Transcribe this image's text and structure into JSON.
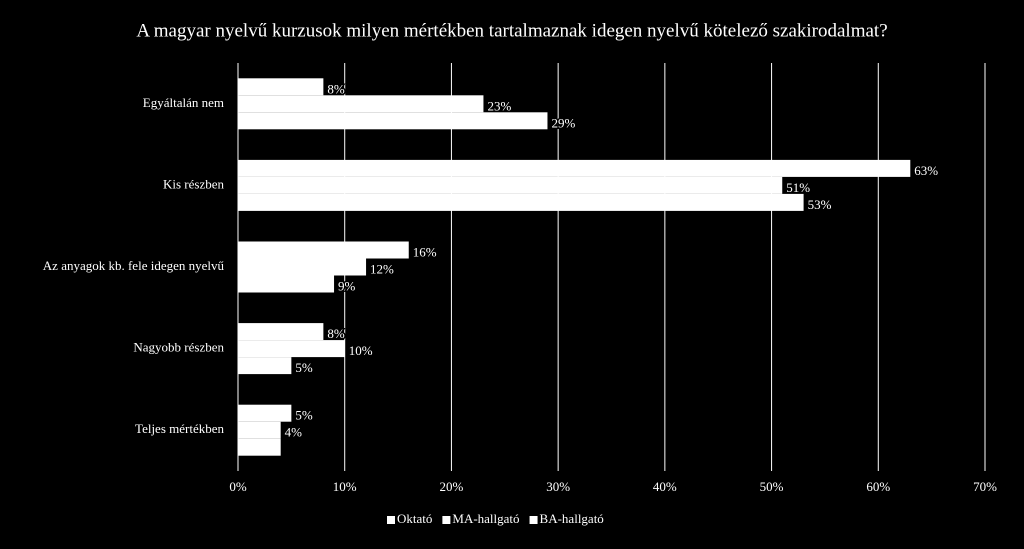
{
  "chart_data": {
    "type": "bar",
    "orientation": "horizontal",
    "title": "A magyar nyelvű kurzusok milyen mértékben tartalmaznak idegen nyelvű kötelező szakirodalmat?",
    "categories": [
      "Egyáltalán nem",
      "Kis részben",
      "Az anyagok kb. fele idegen nyelvű",
      "Nagyobb részben",
      "Teljes mértékben"
    ],
    "series": [
      {
        "name": "Oktató",
        "color": "#ffffff",
        "values": [
          8,
          63,
          16,
          8,
          5
        ],
        "value_labels": [
          "8%",
          "63%",
          "16%",
          "8%",
          "5%"
        ]
      },
      {
        "name": "MA-hallgató",
        "color": "#ffffff",
        "values": [
          23,
          51,
          12,
          10,
          4
        ],
        "value_labels": [
          "23%",
          "51%",
          "12%",
          "10%",
          "4%"
        ]
      },
      {
        "name": "BA-hallgató",
        "color": "#ffffff",
        "values": [
          29,
          53,
          9,
          5,
          4
        ],
        "value_labels": [
          "29%",
          "53%",
          "9%",
          "5%",
          null
        ]
      }
    ],
    "xlim": [
      0,
      70
    ],
    "xticks": [
      {
        "value": 0,
        "label": "0%"
      },
      {
        "value": 10,
        "label": "10%"
      },
      {
        "value": 20,
        "label": "20%"
      },
      {
        "value": 30,
        "label": "30%"
      },
      {
        "value": 40,
        "label": "40%"
      },
      {
        "value": 50,
        "label": "50%"
      },
      {
        "value": 60,
        "label": "60%"
      },
      {
        "value": 70,
        "label": "70%"
      }
    ],
    "grid": true,
    "legend": "bottom"
  }
}
